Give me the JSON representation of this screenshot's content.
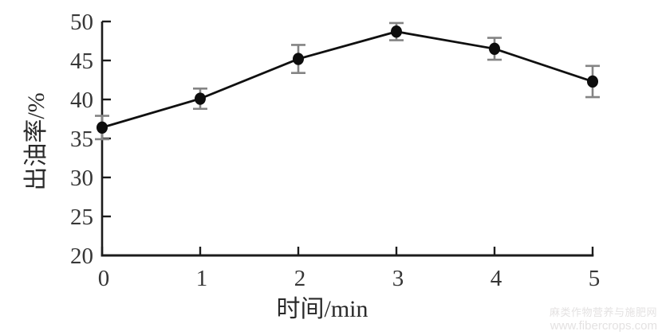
{
  "page": {
    "background": "#ffffff"
  },
  "chart_data": {
    "type": "line",
    "title": "",
    "xlabel": "时间/min",
    "ylabel": "出油率/%",
    "x": [
      0,
      1,
      2,
      3,
      4,
      5
    ],
    "series": [
      {
        "name": "出油率",
        "values": [
          36.4,
          40.1,
          45.2,
          48.7,
          46.5,
          42.3
        ],
        "errors": [
          1.5,
          1.3,
          1.8,
          1.1,
          1.4,
          2.0
        ]
      }
    ],
    "xlim": [
      0,
      5
    ],
    "ylim": [
      20,
      50
    ],
    "x_ticks": [
      0,
      1,
      2,
      3,
      4,
      5
    ],
    "y_ticks": [
      20,
      25,
      30,
      35,
      40,
      45,
      50
    ],
    "grid": false,
    "legend": "none",
    "marker": "filled-circle",
    "colors": {
      "line": "#101010",
      "marker": "#0d0d0d",
      "error_bar": "#848484",
      "axis": "#1c1c1c",
      "tick_label": "#363636",
      "axis_title": "#2a2a2a"
    }
  },
  "watermark": {
    "line1": "麻类作物营养与施肥网",
    "line2": "www.fibercrops.com",
    "color": "#e4e2e2"
  }
}
